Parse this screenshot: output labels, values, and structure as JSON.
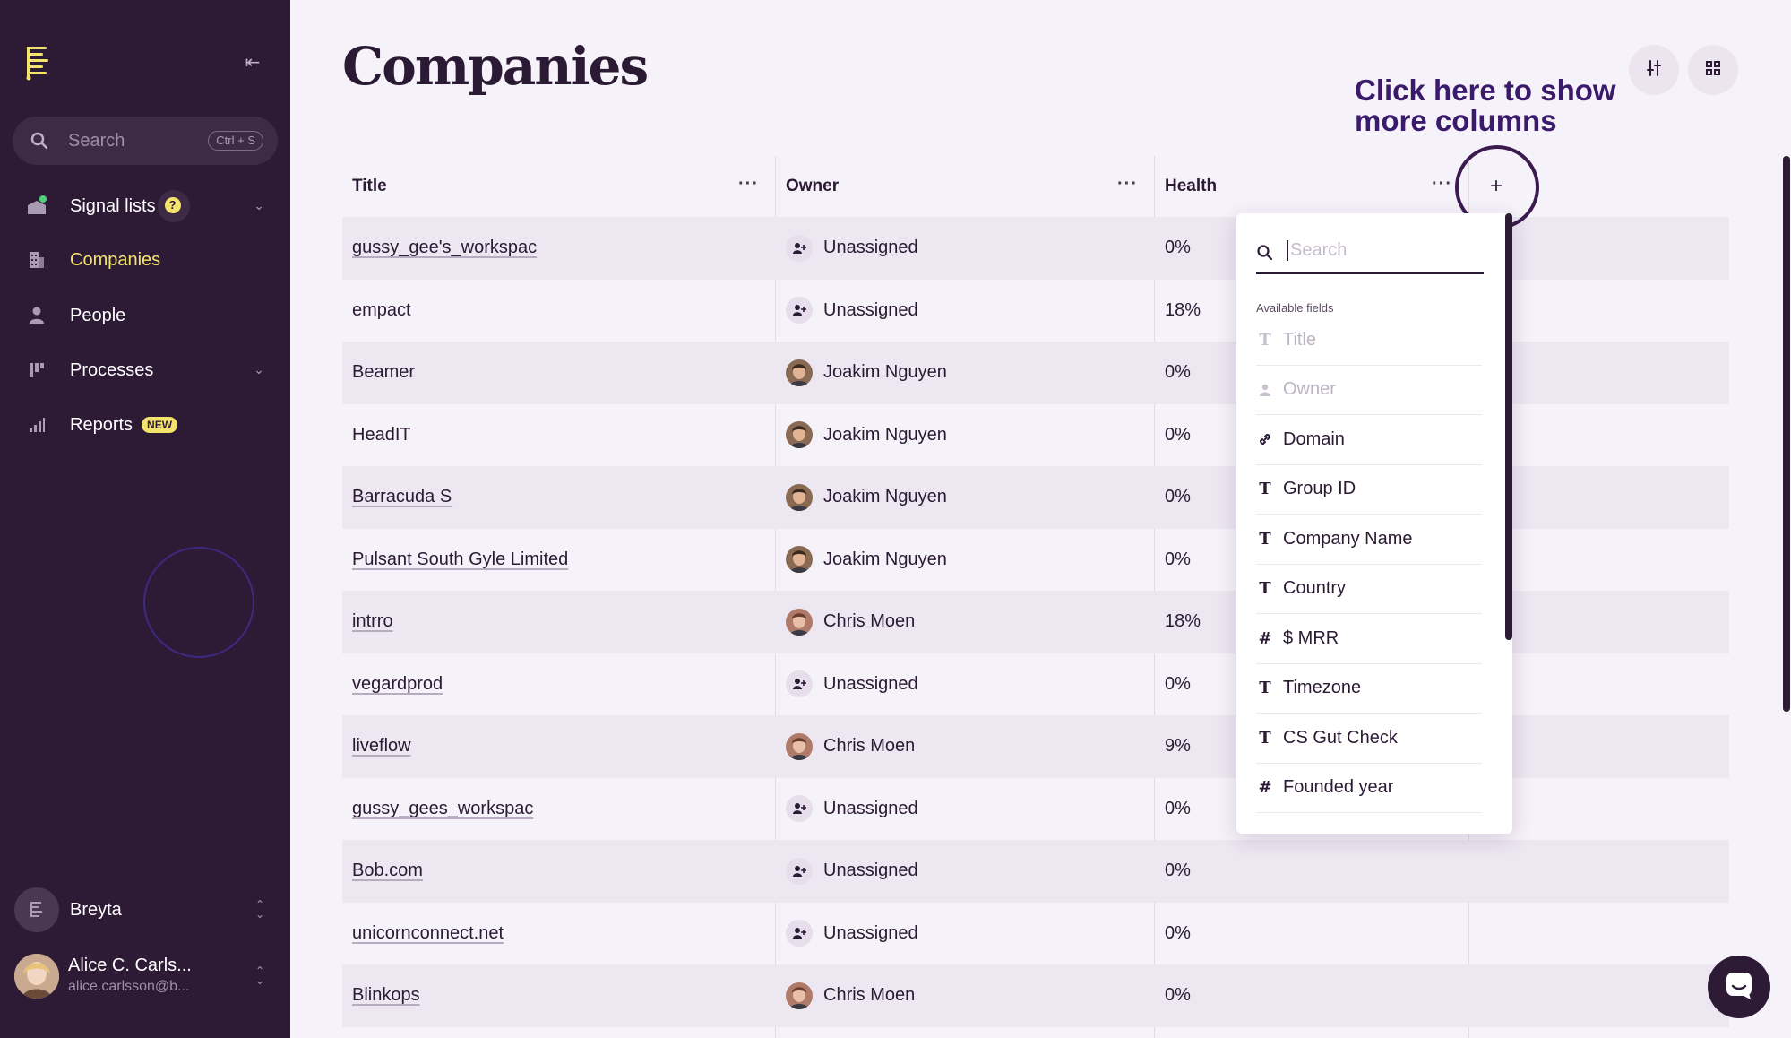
{
  "sidebar": {
    "search_placeholder": "Search",
    "search_shortcut": "Ctrl + S",
    "nav": [
      {
        "label": "Signal lists",
        "icon": "signal-icon"
      },
      {
        "label": "Companies",
        "icon": "building-icon"
      },
      {
        "label": "People",
        "icon": "person-icon"
      },
      {
        "label": "Processes",
        "icon": "process-icon"
      },
      {
        "label": "Reports",
        "icon": "bar-chart-icon"
      }
    ],
    "help_badge": "?",
    "new_badge": "NEW",
    "workspace": "Breyta",
    "user_name": "Alice C. Carls...",
    "user_email": "alice.carlsson@b..."
  },
  "page": {
    "title": "Companies",
    "callout_line1": "Click here to show",
    "callout_line2": "more columns",
    "add_column_symbol": "+"
  },
  "table": {
    "columns": [
      "Title",
      "Owner",
      "Health"
    ],
    "column_menu": "···",
    "rows": [
      {
        "title": "gussy_gee's_workspac",
        "owner": "Unassigned",
        "owner_type": "none",
        "health": "0%",
        "link": true
      },
      {
        "title": "empact",
        "owner": "Unassigned",
        "owner_type": "none",
        "health": "18%",
        "link": false
      },
      {
        "title": "Beamer",
        "owner": "Joakim Nguyen",
        "owner_type": "joakim",
        "health": "0%",
        "link": false
      },
      {
        "title": "HeadIT",
        "owner": "Joakim Nguyen",
        "owner_type": "joakim",
        "health": "0%",
        "link": false
      },
      {
        "title": "Barracuda S",
        "owner": "Joakim Nguyen",
        "owner_type": "joakim",
        "health": "0%",
        "link": true
      },
      {
        "title": "Pulsant South Gyle Limited",
        "owner": "Joakim Nguyen",
        "owner_type": "joakim",
        "health": "0%",
        "link": true
      },
      {
        "title": "intrro",
        "owner": "Chris Moen",
        "owner_type": "chris",
        "health": "18%",
        "link": true
      },
      {
        "title": "vegardprod",
        "owner": "Unassigned",
        "owner_type": "none",
        "health": "0%",
        "link": true
      },
      {
        "title": "liveflow",
        "owner": "Chris Moen",
        "owner_type": "chris",
        "health": "9%",
        "link": true
      },
      {
        "title": "gussy_gees_workspac",
        "owner": "Unassigned",
        "owner_type": "none",
        "health": "0%",
        "link": true
      },
      {
        "title": "Bob.com",
        "owner": "Unassigned",
        "owner_type": "none",
        "health": "0%",
        "link": true
      },
      {
        "title": "unicornconnect.net",
        "owner": "Unassigned",
        "owner_type": "none",
        "health": "0%",
        "link": true
      },
      {
        "title": "Blinkops",
        "owner": "Chris Moen",
        "owner_type": "chris",
        "health": "0%",
        "link": true
      }
    ]
  },
  "dropdown": {
    "search_placeholder": "Search",
    "section_label": "Available fields",
    "fields": [
      {
        "label": "Title",
        "type": "text",
        "disabled": true
      },
      {
        "label": "Owner",
        "type": "person",
        "disabled": true
      },
      {
        "label": "Domain",
        "type": "link",
        "disabled": false
      },
      {
        "label": "Group ID",
        "type": "text",
        "disabled": false
      },
      {
        "label": "Company Name",
        "type": "text",
        "disabled": false
      },
      {
        "label": "Country",
        "type": "text",
        "disabled": false
      },
      {
        "label": "$ MRR",
        "type": "number",
        "disabled": false
      },
      {
        "label": "Timezone",
        "type": "text",
        "disabled": false
      },
      {
        "label": "CS Gut Check",
        "type": "text",
        "disabled": false
      },
      {
        "label": "Founded year",
        "type": "number",
        "disabled": false
      }
    ]
  }
}
